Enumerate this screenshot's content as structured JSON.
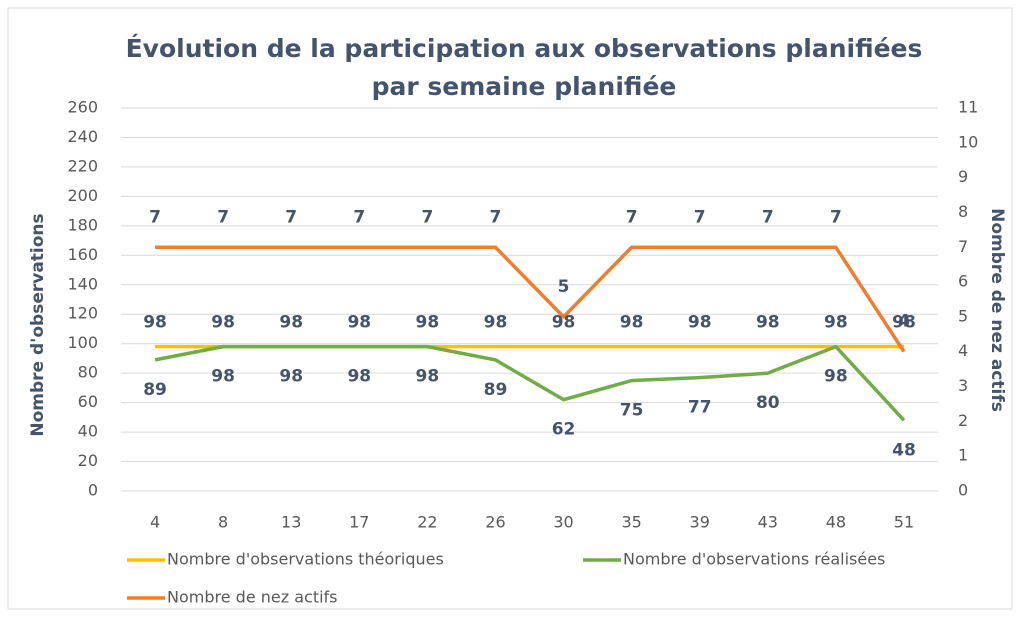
{
  "chart_data": {
    "type": "line",
    "title": [
      "Évolution de la participation aux observations planifiées",
      "par semaine planifiée"
    ],
    "ylabel": "Nombre d'observations",
    "y2label": "Nombre de nez actifs",
    "categories": [
      "4",
      "8",
      "13",
      "17",
      "22",
      "26",
      "30",
      "35",
      "39",
      "43",
      "48",
      "51"
    ],
    "series": [
      {
        "name": "Nombre d'observations théoriques",
        "color": "#FFC000",
        "values": [
          98,
          98,
          98,
          98,
          98,
          98,
          98,
          98,
          98,
          98,
          98,
          98
        ]
      },
      {
        "name": "Nombre d'observations réalisées",
        "color": "#70AD47",
        "values": [
          89,
          98,
          98,
          98,
          98,
          89,
          62,
          75,
          77,
          80,
          98,
          48
        ]
      },
      {
        "name": "Nombre de nez actifs",
        "color": "#ED7D31",
        "axis": "y2",
        "values": [
          7,
          7,
          7,
          7,
          7,
          7,
          5,
          7,
          7,
          7,
          7,
          4
        ]
      }
    ],
    "ylim": [
      0,
      260
    ],
    "yticks": [
      0,
      20,
      40,
      60,
      80,
      100,
      120,
      140,
      160,
      180,
      200,
      220,
      240,
      260
    ],
    "y2lim": [
      0,
      11
    ],
    "y2ticks": [
      0,
      1,
      2,
      3,
      4,
      5,
      6,
      7,
      8,
      9,
      10,
      11
    ],
    "grid": true,
    "legend": "bottom"
  }
}
